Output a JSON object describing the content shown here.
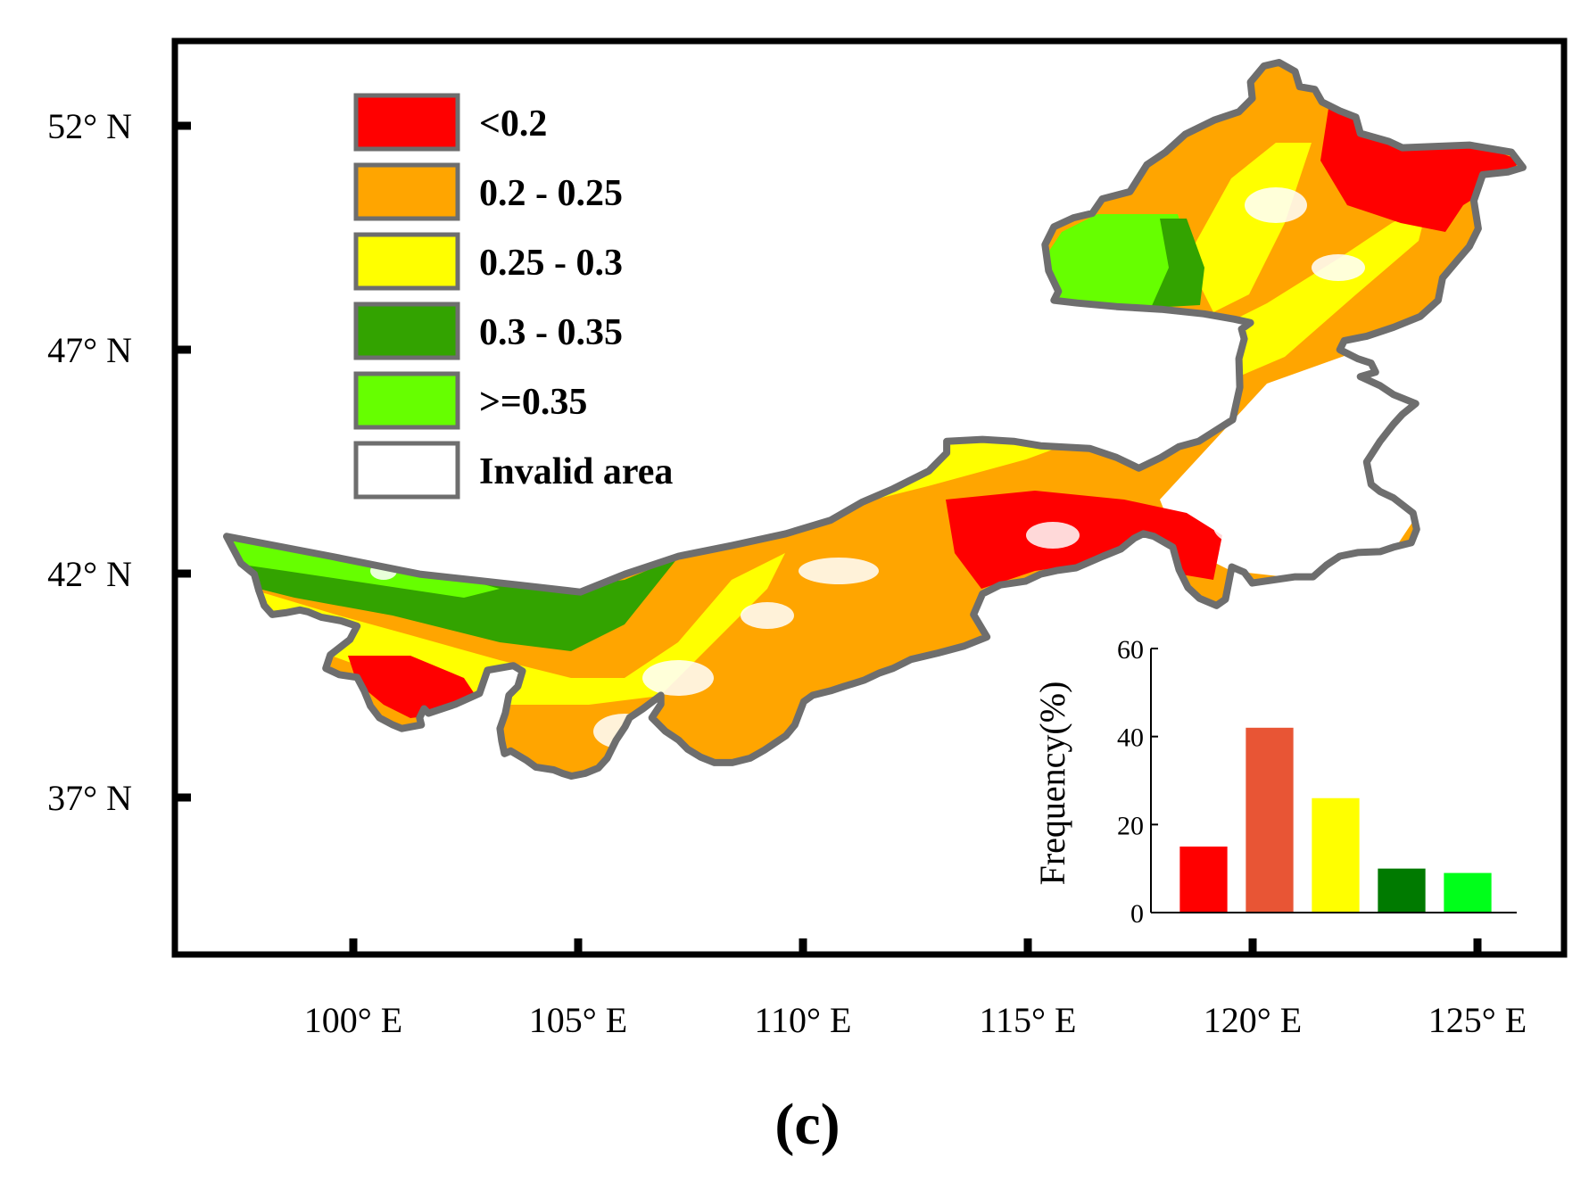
{
  "map": {
    "lat_ticks": [
      {
        "label": "52° N",
        "lat": 52
      },
      {
        "label": "47° N",
        "lat": 47
      },
      {
        "label": "42° N",
        "lat": 42
      },
      {
        "label": "37° N",
        "lat": 37
      }
    ],
    "lon_ticks": [
      {
        "label": "100° E",
        "lon": 100
      },
      {
        "label": "105° E",
        "lon": 105
      },
      {
        "label": "110° E",
        "lon": 110
      },
      {
        "label": "115° E",
        "lon": 115
      },
      {
        "label": "120° E",
        "lon": 120
      },
      {
        "label": "125° E",
        "lon": 125
      }
    ],
    "legend": [
      {
        "label": "<0.2",
        "color": "#ff0000"
      },
      {
        "label": "0.2 - 0.25",
        "color": "#ffa500"
      },
      {
        "label": "0.25 - 0.3",
        "color": "#ffff00"
      },
      {
        "label": "0.3 - 0.35",
        "color": "#33a300"
      },
      {
        "label": ">=0.35",
        "color": "#66ff00"
      },
      {
        "label": "Invalid area",
        "color": "#ffffff"
      }
    ]
  },
  "inset": {
    "chart_data": {
      "type": "bar",
      "ylabel": "Frequency(%)",
      "ylim": [
        0,
        60
      ],
      "yticks": [
        0,
        20,
        40,
        60
      ],
      "values": [
        15,
        42,
        26,
        10,
        9
      ],
      "colors": [
        "#ff0000",
        "#e85535",
        "#ffff00",
        "#007a00",
        "#00ff1a"
      ]
    }
  },
  "caption": "(c)"
}
